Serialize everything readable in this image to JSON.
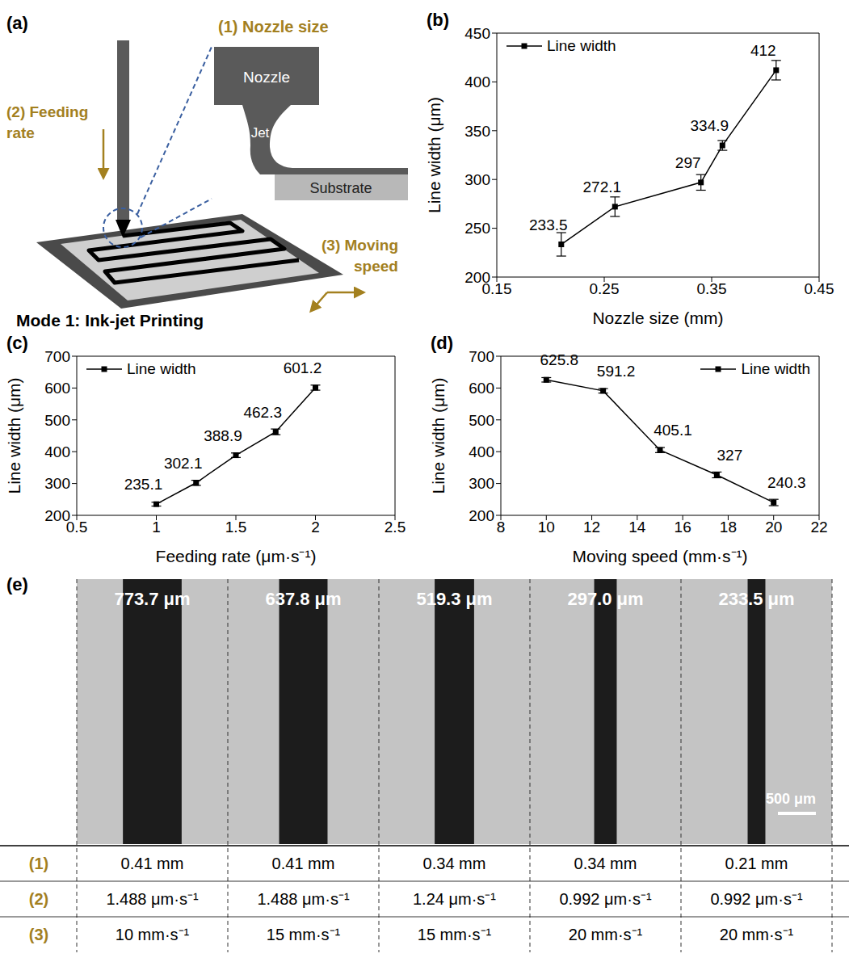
{
  "chart_data": [
    {
      "type": "line",
      "panel_label": "(b)",
      "x_label": "Nozzle size (mm)",
      "y_label": "Line width (μm)",
      "x": [
        0.21,
        0.26,
        0.34,
        0.36,
        0.41
      ],
      "series": [
        {
          "name": "Line width",
          "color": "#000000",
          "marker": "square",
          "values": [
            233.5,
            272.1,
            297,
            334.9,
            412
          ],
          "errors": [
            12,
            10,
            8,
            5,
            10
          ]
        }
      ],
      "xlim": [
        0.15,
        0.45
      ],
      "xticks": [
        0.15,
        0.25,
        0.35,
        0.45
      ],
      "ylim": [
        200,
        450
      ],
      "yticks": [
        200,
        250,
        300,
        350,
        400,
        450
      ],
      "data_labels": true,
      "legend": "upper left",
      "grid": false
    },
    {
      "type": "line",
      "panel_label": "(c)",
      "x_label": "Feeding rate (μm·s⁻¹)",
      "y_label": "Line width (μm)",
      "x": [
        1,
        1.25,
        1.5,
        1.75,
        2
      ],
      "series": [
        {
          "name": "Line width",
          "color": "#000000",
          "marker": "square",
          "values": [
            235.1,
            302.1,
            388.9,
            462.3,
            601.2
          ],
          "errors": [
            6,
            8,
            7,
            9,
            8
          ]
        }
      ],
      "xlim": [
        0.5,
        2.5
      ],
      "xticks": [
        0.5,
        1,
        1.5,
        2,
        2.5
      ],
      "ylim": [
        200,
        700
      ],
      "yticks": [
        200,
        300,
        400,
        500,
        600,
        700
      ],
      "data_labels": true,
      "legend": "upper left",
      "grid": false
    },
    {
      "type": "line",
      "panel_label": "(d)",
      "x_label": "Moving speed (mm·s⁻¹)",
      "y_label": "Line width (μm)",
      "x": [
        10,
        12.5,
        15,
        17.5,
        20
      ],
      "series": [
        {
          "name": "Line width",
          "color": "#000000",
          "marker": "square",
          "values": [
            625.8,
            591.2,
            405.1,
            327,
            240.3
          ],
          "errors": [
            7,
            7,
            8,
            9,
            10
          ]
        }
      ],
      "xlim": [
        8,
        22
      ],
      "xticks": [
        8,
        10,
        12,
        14,
        16,
        18,
        20,
        22
      ],
      "ylim": [
        200,
        700
      ],
      "yticks": [
        200,
        300,
        400,
        500,
        600,
        700
      ],
      "data_labels": true,
      "legend": "upper right",
      "grid": false
    }
  ],
  "diagram": {
    "panel_label": "(a)",
    "parameters": [
      "(1) Nozzle size",
      "(2) Feeding rate",
      "(3) Moving speed"
    ],
    "inset": {
      "nozzle": "Nozzle",
      "jet": "Jet",
      "substrate": "Substrate"
    },
    "caption": "Mode 1: Ink-jet Printing"
  },
  "micrograph": {
    "panel_label": "(e)",
    "scale_bar": {
      "value": 500,
      "label": "500 μm"
    },
    "line_widths": [
      773.7,
      637.8,
      519.3,
      297.0,
      233.5
    ],
    "line_width_labels": [
      "773.7 μm",
      "637.8 μm",
      "519.3 μm",
      "297.0 μm",
      "233.5 μm"
    ],
    "table": {
      "row_labels": [
        "(1)",
        "(2)",
        "(3)"
      ],
      "rows": [
        [
          "0.41 mm",
          "0.41 mm",
          "0.34 mm",
          "0.34 mm",
          "0.21 mm"
        ],
        [
          "1.488 μm·s⁻¹",
          "1.488 μm·s⁻¹",
          "1.24 μm·s⁻¹",
          "0.992 μm·s⁻¹",
          "0.992 μm·s⁻¹"
        ],
        [
          "10 mm·s⁻¹",
          "15 mm·s⁻¹",
          "15 mm·s⁻¹",
          "20 mm·s⁻¹",
          "20 mm·s⁻¹"
        ]
      ]
    }
  }
}
